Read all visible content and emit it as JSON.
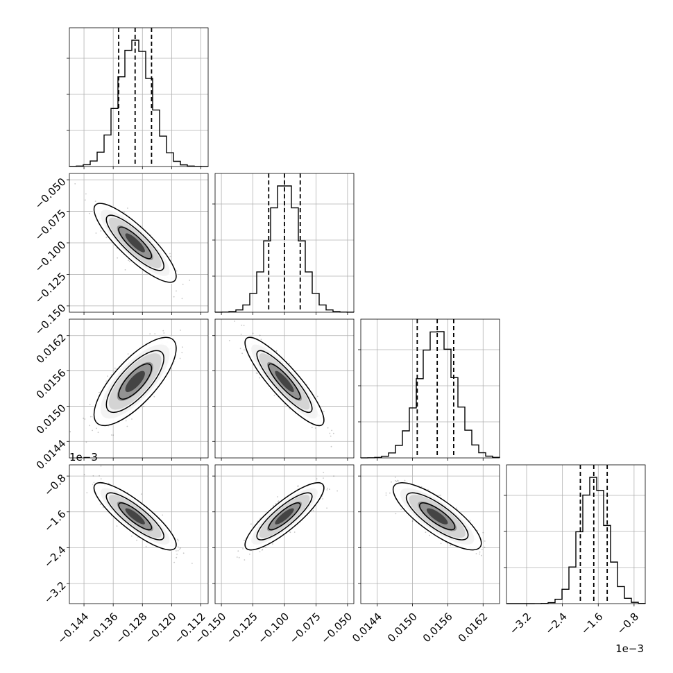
{
  "chart_data": {
    "type": "corner",
    "parameters": [
      {
        "range": [
          -0.148,
          -0.11
        ],
        "ticks": [
          -0.144,
          -0.136,
          -0.128,
          -0.12,
          -0.112
        ],
        "tick_labels": [
          "−0.144",
          "−0.136",
          "−0.128",
          "−0.120",
          "−0.112"
        ],
        "quantiles": [
          -0.1345,
          -0.13,
          -0.1255
        ],
        "mean": -0.13,
        "sd": 0.0045,
        "offset_label": ""
      },
      {
        "range": [
          -0.155,
          -0.045
        ],
        "ticks": [
          -0.15,
          -0.125,
          -0.1,
          -0.075,
          -0.05
        ],
        "tick_labels": [
          "−0.150",
          "−0.125",
          "−0.100",
          "−0.075",
          "−0.050"
        ],
        "quantiles": [
          -0.1125,
          -0.1,
          -0.0875
        ],
        "mean": -0.1,
        "sd": 0.0125,
        "offset_label": ""
      },
      {
        "range": [
          0.01412,
          0.01648
        ],
        "ticks": [
          0.0144,
          0.015,
          0.0156,
          0.0162
        ],
        "tick_labels": [
          "0.0144",
          "0.0150",
          "0.0156",
          "0.0162"
        ],
        "quantiles": [
          0.01508,
          0.01542,
          0.0157
        ],
        "mean": 0.01542,
        "sd": 0.0003,
        "offset_label": ""
      },
      {
        "range": [
          -0.00365,
          -0.00055
        ],
        "ticks": [
          -0.0032,
          -0.0024,
          -0.0016,
          -0.0008
        ],
        "tick_labels": [
          "−3.2",
          "−2.4",
          "−1.6",
          "−0.8"
        ],
        "quantiles": [
          -0.002,
          -0.0017,
          -0.0014
        ],
        "mean": -0.0017,
        "sd": 0.0003,
        "offset_label": "1e−3"
      }
    ],
    "correlations": [
      [
        1,
        -0.85,
        0.75,
        -0.85
      ],
      [
        -0.85,
        1,
        -0.88,
        0.85
      ],
      [
        0.75,
        -0.88,
        1,
        -0.8
      ],
      [
        -0.85,
        0.85,
        -0.8,
        1
      ]
    ],
    "grid": true
  }
}
